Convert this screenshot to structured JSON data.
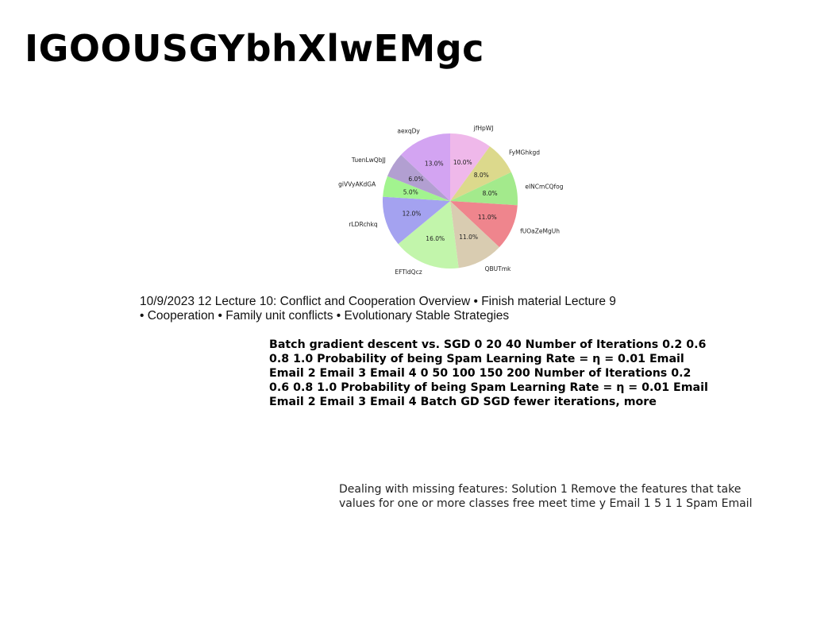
{
  "page": {
    "title": "IGOOUSGYbhXlwEMgc",
    "text_block_1": "10/9/2023 12 Lecture 10: Conflict and Cooperation Overview • Finish material Lecture 9 • Cooperation • Family unit conflicts • Evolutionary Stable Strategies",
    "text_block_2": "Batch gradient descent vs. SGD 0 20 40 Number of Iterations 0.2 0.6 0.8 1.0 Probability of being Spam Learning Rate = η = 0.01 Email Email 2 Email 3 Email 4 0 50 100 150 200 Number of Iterations 0.2 0.6 0.8 1.0 Probability of being Spam Learning Rate = η = 0.01 Email Email 2 Email 3 Email 4 Batch GD SGD fewer iterations, more",
    "text_block_3": "Dealing with missing features: Solution 1 Remove the features that take values for one or more classes free meet time y Email 1 5 1 1 Spam Email"
  },
  "chart_data": {
    "type": "pie",
    "start_angle_deg": 90,
    "direction": "clockwise",
    "slices": [
      {
        "label": "jfHpWJ",
        "value": 10.0,
        "pct_label": "10.0%",
        "color": "#efb8ea"
      },
      {
        "label": "FyMGhkgd",
        "value": 8.0,
        "pct_label": "8.0%",
        "color": "#dcd98c"
      },
      {
        "label": "eINCmCQfog",
        "value": 8.0,
        "pct_label": "8.0%",
        "color": "#a3ea8c"
      },
      {
        "label": "fUOaZeMgUh",
        "value": 11.0,
        "pct_label": "11.0%",
        "color": "#ef858d"
      },
      {
        "label": "QBUTmk",
        "value": 11.0,
        "pct_label": "11.0%",
        "color": "#d9ccb1"
      },
      {
        "label": "EFTldQcz",
        "value": 16.0,
        "pct_label": "16.0%",
        "color": "#c2f5ab"
      },
      {
        "label": "rLDRchkq",
        "value": 12.0,
        "pct_label": "12.0%",
        "color": "#a4a2f0"
      },
      {
        "label": "giVVyAKdGA",
        "value": 5.0,
        "pct_label": "5.0%",
        "color": "#a2f48f"
      },
      {
        "label": "TuenLwQbJJ",
        "value": 6.0,
        "pct_label": "6.0%",
        "color": "#b29fd1"
      },
      {
        "label": "aexqDy",
        "value": 13.0,
        "pct_label": "13.0%",
        "color": "#d3a4f2"
      }
    ]
  }
}
